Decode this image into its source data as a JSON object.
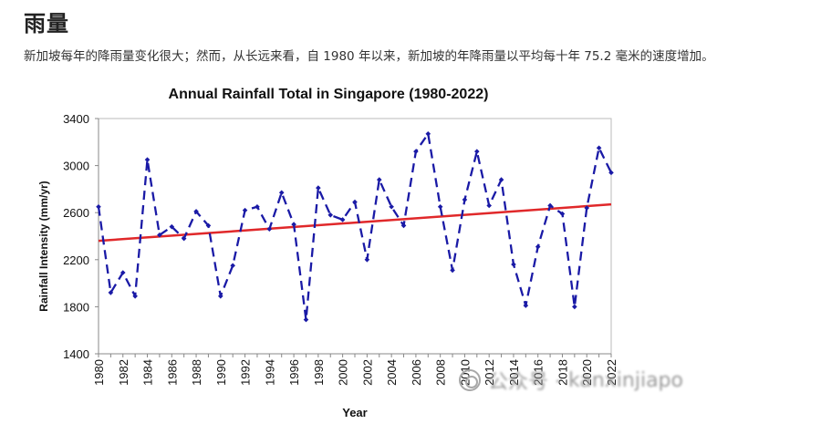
{
  "header": {
    "title": "雨量",
    "description": "新加坡每年的降雨量变化很大；然而，从长远来看，自 1980 年以来，新加坡的年降雨量以平均每十年 75.2 毫米的速度增加。"
  },
  "watermark": {
    "text": "kanxinjiapo",
    "label": "公众号 ·"
  },
  "colors": {
    "series": "#1a1aa6",
    "trend": "#e0282a",
    "axis": "#888888",
    "plot_border": "#bbbbbb"
  },
  "chart_data": {
    "type": "line",
    "title": "Annual Rainfall Total in Singapore (1980-2022)",
    "xlabel": "Year",
    "ylabel": "Rainfall Intensity (mm/yr)",
    "xlim": [
      1980,
      2022
    ],
    "ylim": [
      1400,
      3400
    ],
    "yticks": [
      1400,
      1800,
      2200,
      2600,
      3000,
      3400
    ],
    "xticks": [
      1980,
      1982,
      1984,
      1986,
      1988,
      1990,
      1992,
      1994,
      1996,
      1998,
      2000,
      2002,
      2004,
      2006,
      2008,
      2010,
      2012,
      2014,
      2016,
      2018,
      2020,
      2022
    ],
    "grid": false,
    "series": [
      {
        "style": "dashed with diamond markers",
        "x": [
          1980,
          1981,
          1982,
          1983,
          1984,
          1985,
          1986,
          1987,
          1988,
          1989,
          1990,
          1991,
          1992,
          1993,
          1994,
          1995,
          1996,
          1997,
          1998,
          1999,
          2000,
          2001,
          2002,
          2003,
          2004,
          2005,
          2006,
          2007,
          2008,
          2009,
          2010,
          2011,
          2012,
          2013,
          2014,
          2015,
          2016,
          2017,
          2018,
          2019,
          2020,
          2021,
          2022
        ],
        "values": [
          2650,
          1920,
          2090,
          1890,
          3050,
          2410,
          2480,
          2380,
          2610,
          2490,
          1890,
          2150,
          2620,
          2650,
          2460,
          2770,
          2500,
          1690,
          2810,
          2580,
          2540,
          2690,
          2200,
          2880,
          2650,
          2490,
          3120,
          3270,
          2650,
          2110,
          2710,
          3120,
          2660,
          2880,
          2160,
          1810,
          2310,
          2660,
          2590,
          1800,
          2640,
          3150,
          2940
        ]
      },
      {
        "style": "linear trend",
        "x": [
          1980,
          2022
        ],
        "values": [
          2360,
          2670
        ]
      }
    ]
  }
}
